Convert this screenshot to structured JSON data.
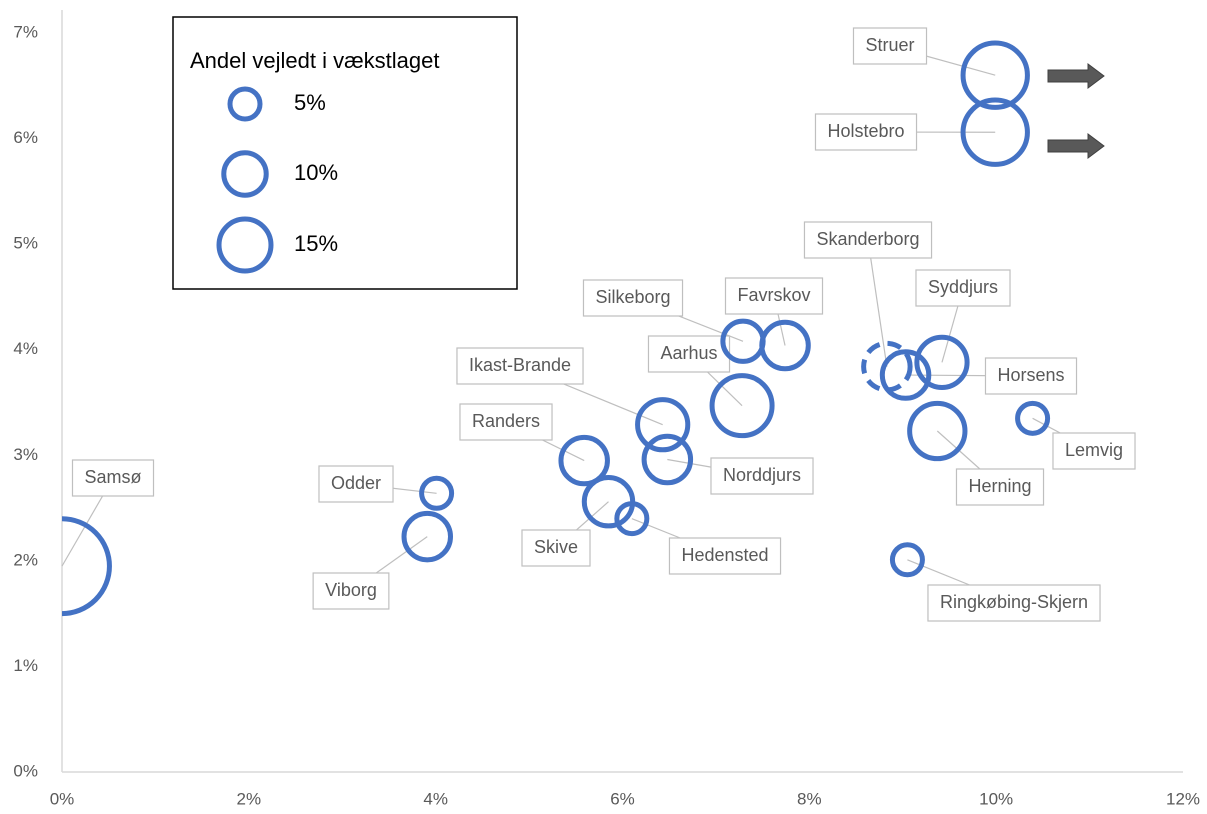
{
  "chart_data": {
    "type": "bubble",
    "color": "#4472c4",
    "xlim": [
      0,
      12
    ],
    "xticks": [
      {
        "value": 0,
        "label": "0%"
      },
      {
        "value": 2,
        "label": "2%"
      },
      {
        "value": 4,
        "label": "4%"
      },
      {
        "value": 6,
        "label": "6%"
      },
      {
        "value": 8,
        "label": "8%"
      },
      {
        "value": 10,
        "label": "10%"
      },
      {
        "value": 12,
        "label": "12%"
      }
    ],
    "ylim": [
      0,
      7
    ],
    "yticks": [
      {
        "value": 0,
        "label": "0%"
      },
      {
        "value": 1,
        "label": "1%"
      },
      {
        "value": 2,
        "label": "2%"
      },
      {
        "value": 3,
        "label": "3%"
      },
      {
        "value": 4,
        "label": "4%"
      },
      {
        "value": 5,
        "label": "5%"
      },
      {
        "value": 6,
        "label": "6%"
      },
      {
        "value": 7,
        "label": "7%"
      }
    ],
    "points": [
      {
        "label": "Samsø",
        "x": 0,
        "y": 1.95,
        "size": 50
      },
      {
        "label": "Odder",
        "x": 4.01,
        "y": 2.64,
        "size": 5
      },
      {
        "label": "Viborg",
        "x": 3.91,
        "y": 2.23,
        "size": 12
      },
      {
        "label": "Randers",
        "x": 5.59,
        "y": 2.95,
        "size": 12
      },
      {
        "label": "Skive",
        "x": 5.85,
        "y": 2.56,
        "size": 13
      },
      {
        "label": "Hedensted",
        "x": 6.1,
        "y": 2.4,
        "size": 5
      },
      {
        "label": "Ikast-Brande",
        "x": 6.43,
        "y": 3.29,
        "size": 14
      },
      {
        "label": "Norddjurs",
        "x": 6.48,
        "y": 2.96,
        "size": 12
      },
      {
        "label": "Silkeborg",
        "x": 7.29,
        "y": 4.08,
        "size": 9
      },
      {
        "label": "Favrskov",
        "x": 7.74,
        "y": 4.04,
        "size": 12
      },
      {
        "label": "Aarhus",
        "x": 7.28,
        "y": 3.47,
        "size": 20
      },
      {
        "label": "Skanderborg",
        "x": 8.83,
        "y": 3.84,
        "size": 12,
        "dashed": true
      },
      {
        "label": "Horsens",
        "x": 9.03,
        "y": 3.76,
        "size": 12
      },
      {
        "label": "Syddjurs",
        "x": 9.42,
        "y": 3.88,
        "size": 14
      },
      {
        "label": "Herning",
        "x": 9.37,
        "y": 3.23,
        "size": 17
      },
      {
        "label": "Lemvig",
        "x": 10.39,
        "y": 3.35,
        "size": 5
      },
      {
        "label": "Ringkøbing-Skjern",
        "x": 9.05,
        "y": 2.01,
        "size": 5
      },
      {
        "label": "Struer",
        "x": 9.99,
        "y": 6.6,
        "size": 23
      },
      {
        "label": "Holstebro",
        "x": 9.99,
        "y": 6.06,
        "size": 23
      }
    ],
    "legend": {
      "title": "Andel vejledt i vækstlaget",
      "sizes": [
        {
          "value": 5,
          "label": "5%"
        },
        {
          "value": 10,
          "label": "10%"
        },
        {
          "value": 15,
          "label": "15%"
        }
      ]
    }
  }
}
